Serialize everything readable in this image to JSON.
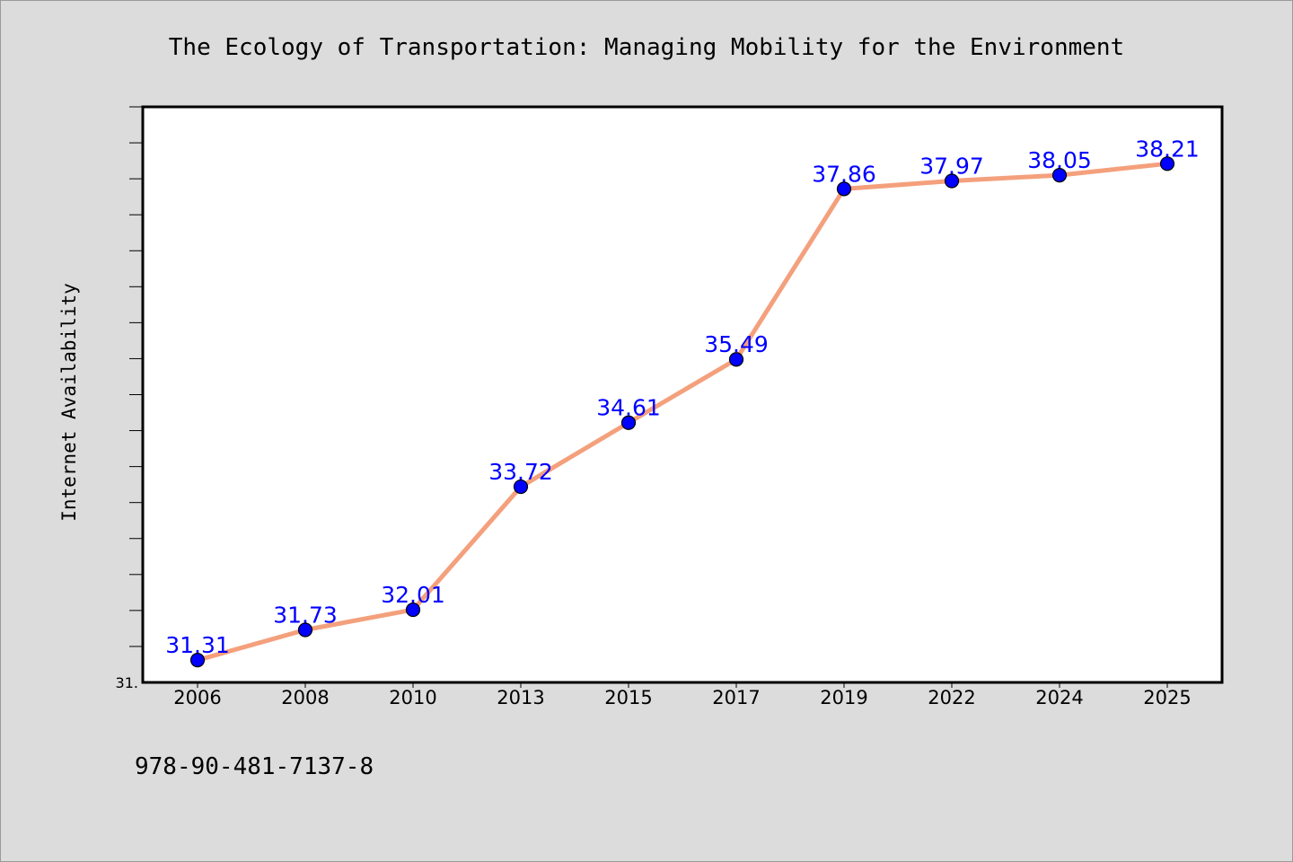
{
  "chart_data": {
    "type": "line",
    "title": "The Ecology of Transportation: Managing Mobility for the Environment",
    "xlabel": "",
    "ylabel": "Internet Availability",
    "categories": [
      "2006",
      "2008",
      "2010",
      "2013",
      "2015",
      "2017",
      "2019",
      "2022",
      "2024",
      "2025"
    ],
    "values": [
      31.31,
      31.73,
      32.01,
      33.72,
      34.61,
      35.49,
      37.86,
      37.97,
      38.05,
      38.21
    ],
    "data_labels": [
      "31.31",
      "31.73",
      "32.01",
      "33.72",
      "34.61",
      "35.49",
      "37.86",
      "37.97",
      "38.05",
      "38.21"
    ],
    "ylim": [
      31.0,
      39.0
    ],
    "y_tick_label": "31.",
    "grid": false,
    "legend": "none",
    "line_color": "#f4a07c",
    "marker_color": "#0000ff"
  },
  "footer_text": "978-90-481-7137-8"
}
